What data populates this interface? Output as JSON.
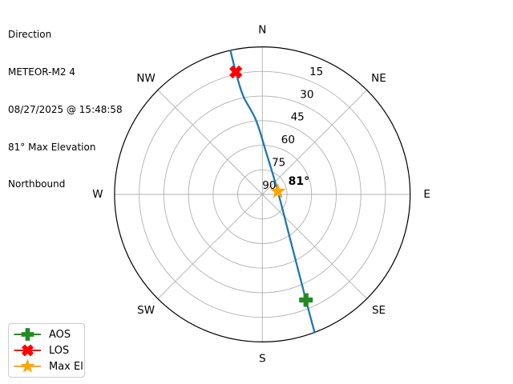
{
  "header": {
    "lines": [
      "Direction",
      "METEOR-M2 4",
      "08/27/2025 @ 15:48:58",
      "81° Max Elevation",
      "Northbound"
    ]
  },
  "chart_data": {
    "type": "polar",
    "title": "Direction",
    "satellite": "METEOR-M2 4",
    "timestamp": "08/27/2025 @ 15:48:58",
    "max_elevation_deg": 81,
    "pass_direction": "Northbound",
    "compass_labels": [
      "N",
      "NE",
      "E",
      "SE",
      "S",
      "SW",
      "W",
      "NW"
    ],
    "elevation_ticks": [
      15,
      30,
      45,
      60,
      75,
      90
    ],
    "elevation_range": [
      0,
      90
    ],
    "rlabel_angle_deg": 22.5,
    "grid": true,
    "spoke_step_deg": 45,
    "track_points_az_el": [
      [
        159.3,
        0
      ],
      [
        157.6,
        20.3
      ],
      [
        148.5,
        57.3
      ],
      [
        79.2,
        80.4
      ],
      [
        5.0,
        64.0
      ],
      [
        355.1,
        44.5
      ],
      [
        349.0,
        28.8
      ],
      [
        347.8,
        13.6
      ],
      [
        347.5,
        0
      ]
    ],
    "markers": [
      {
        "id": "aos",
        "label": "AOS",
        "shape": "plus",
        "color": "#228B22",
        "az": 157.6,
        "el": 20.3
      },
      {
        "id": "los",
        "label": "LOS",
        "shape": "x",
        "color": "#FF0000",
        "az": 347.8,
        "el": 13.6
      },
      {
        "id": "maxel",
        "label": "Max El",
        "shape": "star",
        "color": "#FFA500",
        "az": 79.2,
        "el": 80.4
      }
    ],
    "annotation": {
      "text": "81°"
    },
    "colors": {
      "track": "#1f77b4",
      "grid": "#b0b0b0",
      "outer_ring": "#000000",
      "text": "#000000",
      "background": "#ffffff"
    }
  },
  "legend": {
    "items": [
      {
        "label": "AOS"
      },
      {
        "label": "LOS"
      },
      {
        "label": "Max El"
      }
    ]
  }
}
